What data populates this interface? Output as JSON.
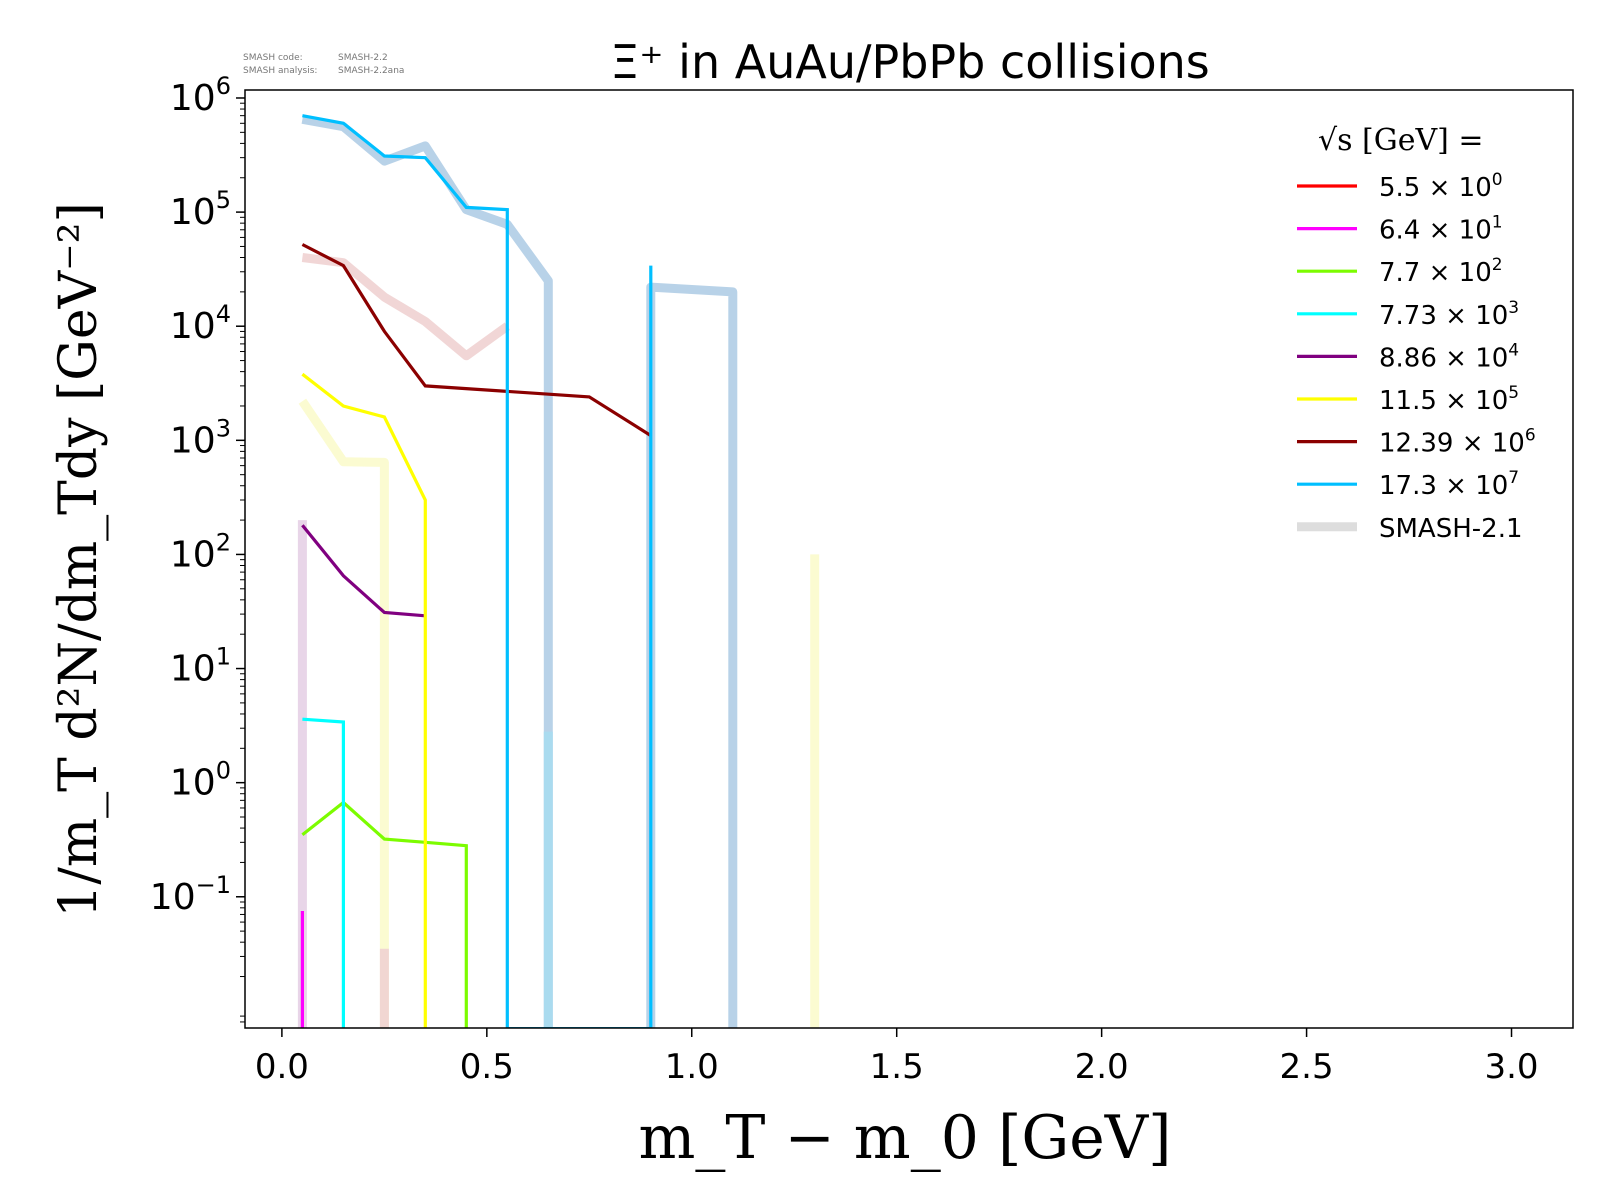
{
  "version_note": {
    "code_label": "SMASH code:",
    "code_value": "SMASH-2.2",
    "analysis_label": "SMASH analysis:",
    "analysis_value": "SMASH-2.2ana"
  },
  "chart_data": {
    "type": "line",
    "title": "Ξ⁺ in AuAu/PbPb collisions",
    "xlabel": "m_T − m_0 [GeV]",
    "ylabel": "1/m_T d²N/dm_Tdy [GeV⁻²]",
    "xlim": [
      -0.09,
      3.15
    ],
    "ylim_log10": [
      -2.15,
      6.07
    ],
    "y_scale": "log",
    "grid": false,
    "legend_position": "top-right",
    "legend_title": "√s [GeV] =",
    "x_ticks": [
      {
        "value": 0.0,
        "label": "0.0"
      },
      {
        "value": 0.5,
        "label": "0.5"
      },
      {
        "value": 1.0,
        "label": "1.0"
      },
      {
        "value": 1.5,
        "label": "1.5"
      },
      {
        "value": 2.0,
        "label": "2.0"
      },
      {
        "value": 2.5,
        "label": "2.5"
      },
      {
        "value": 3.0,
        "label": "3.0"
      }
    ],
    "y_ticks": [
      {
        "exp": 6,
        "label": "10",
        "sup": "6"
      },
      {
        "exp": 5,
        "label": "10",
        "sup": "5"
      },
      {
        "exp": 4,
        "label": "10",
        "sup": "4"
      },
      {
        "exp": 3,
        "label": "10",
        "sup": "3"
      },
      {
        "exp": 2,
        "label": "10",
        "sup": "2"
      },
      {
        "exp": 1,
        "label": "10",
        "sup": "1"
      },
      {
        "exp": 0,
        "label": "10",
        "sup": "0"
      },
      {
        "exp": -1,
        "label": "10",
        "sup": "−1"
      }
    ],
    "series": [
      {
        "name": "5.5 × 10",
        "sup": "0",
        "color": "#ff0000",
        "x": [],
        "y": []
      },
      {
        "name": "6.4 × 10",
        "sup": "1",
        "color": "#ff00ff",
        "x": [
          0.05,
          0.05
        ],
        "y": [
          0.075,
          0.007
        ]
      },
      {
        "name": "7.7 × 10",
        "sup": "2",
        "color": "#7cfc00",
        "x": [
          0.05,
          0.15,
          0.25,
          0.35,
          0.45,
          0.45
        ],
        "y": [
          0.35,
          0.67,
          0.32,
          0.3,
          0.28,
          0.007
        ]
      },
      {
        "name": "7.73 × 10",
        "sup": "3",
        "color": "#00ffff",
        "x": [
          0.05,
          0.15,
          0.15
        ],
        "y": [
          3.6,
          3.4,
          0.007
        ]
      },
      {
        "name": "8.86 × 10",
        "sup": "4",
        "color": "#800080",
        "x": [
          0.05,
          0.15,
          0.25,
          0.35
        ],
        "y": [
          180,
          65,
          31,
          29
        ]
      },
      {
        "name": "11.5 × 10",
        "sup": "5",
        "color": "#ffff00",
        "x": [
          0.05,
          0.15,
          0.25,
          0.35,
          0.35
        ],
        "y": [
          3800,
          2000,
          1600,
          300,
          0.007
        ]
      },
      {
        "name": "12.39 × 10",
        "sup": "6",
        "color": "#8b0000",
        "x": [
          0.05,
          0.15,
          0.25,
          0.35,
          0.75,
          0.9
        ],
        "y": [
          52000,
          34000,
          9000,
          3000,
          2400,
          1100
        ]
      },
      {
        "name": "17.3 × 10",
        "sup": "7",
        "color": "#00bfff",
        "x": [
          0.05,
          0.15,
          0.25,
          0.35,
          0.45,
          0.55,
          0.55,
          0.9,
          0.9
        ],
        "y": [
          700000,
          600000,
          310000,
          300000,
          110000,
          105000,
          0.007,
          0.007,
          34000
        ]
      }
    ],
    "reference_label": "SMASH-2.1",
    "reference": [
      {
        "color": "#b0cde6",
        "x": [
          0.05,
          0.15,
          0.25,
          0.35,
          0.45,
          0.55,
          0.65,
          0.65
        ],
        "y": [
          650000,
          560000,
          280000,
          380000,
          105000,
          78000,
          25000,
          0.007
        ]
      },
      {
        "color": "#b0cde6",
        "x": [
          0.9,
          0.9,
          1.1,
          1.1
        ],
        "y": [
          0.007,
          22000,
          20000,
          0.007
        ]
      },
      {
        "color": "#f0d2d2",
        "x": [
          0.05,
          0.15,
          0.25,
          0.35,
          0.45,
          0.55
        ],
        "y": [
          40000,
          36000,
          18000,
          11000,
          5500,
          10000
        ]
      },
      {
        "color": "#fbfbcc",
        "x": [
          0.05,
          0.15,
          0.25,
          0.25
        ],
        "y": [
          2200,
          650,
          640,
          0.007
        ]
      },
      {
        "color": "#fbfbcc",
        "x": [
          1.3,
          1.3
        ],
        "y": [
          100,
          0.007
        ]
      },
      {
        "color": "#e6d0e6",
        "x": [
          0.05,
          0.05
        ],
        "y": [
          200,
          0.007
        ]
      },
      {
        "color": "#a8dcf0",
        "x": [
          0.65,
          0.65
        ],
        "y": [
          2.8,
          0.007
        ]
      },
      {
        "color": "#f0d2d2",
        "x": [
          0.25,
          0.25
        ],
        "y": [
          0.035,
          0.007
        ]
      }
    ]
  }
}
